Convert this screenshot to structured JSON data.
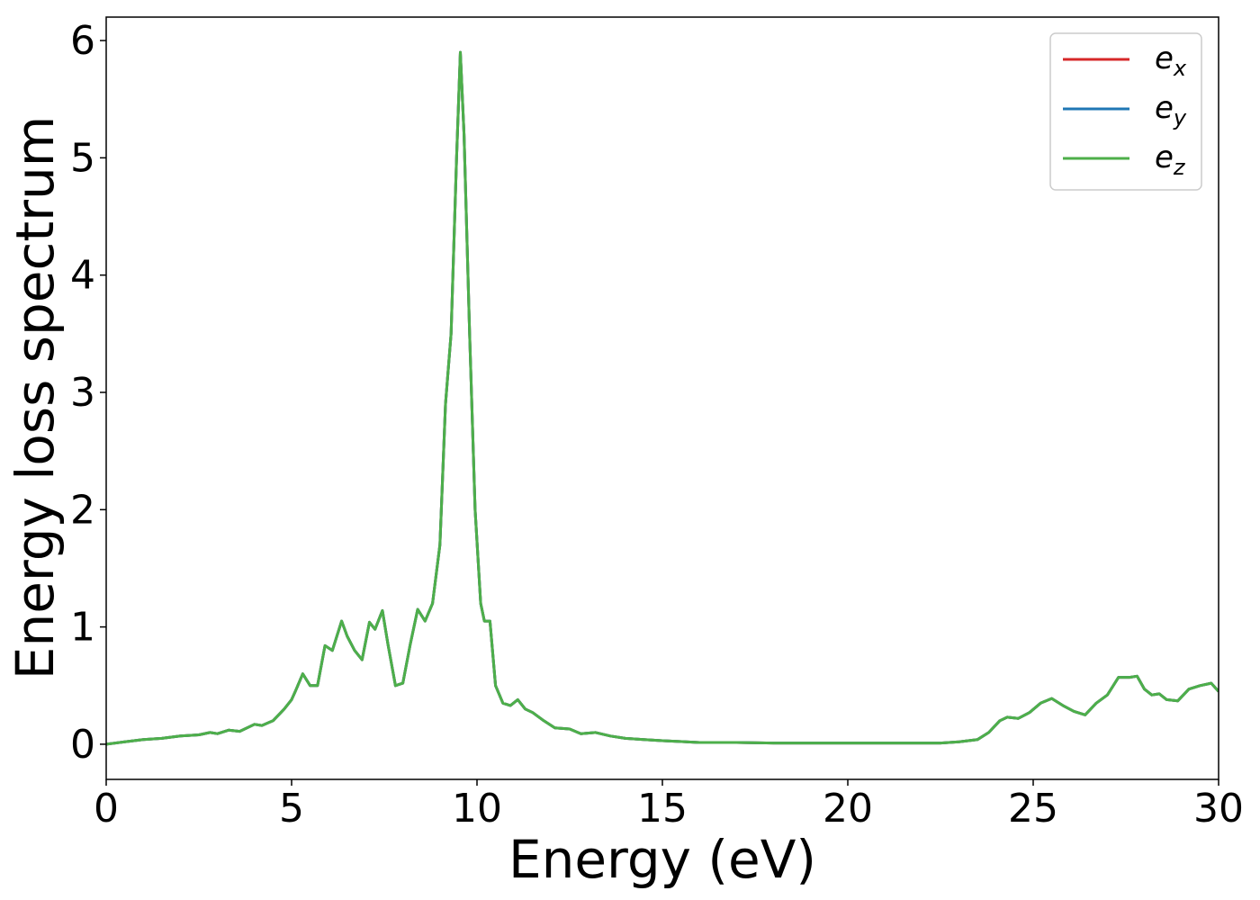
{
  "chart_data": {
    "type": "line",
    "xlabel": "Energy (eV)",
    "ylabel": "Energy loss spectrum",
    "xlim": [
      0,
      30
    ],
    "ylim": [
      -0.3,
      6.2
    ],
    "xticks": [
      0,
      5,
      10,
      15,
      20,
      25,
      30
    ],
    "xtick_labels": [
      "0",
      "5",
      "10",
      "15",
      "20",
      "25",
      "30"
    ],
    "yticks": [
      0,
      1,
      2,
      3,
      4,
      5,
      6
    ],
    "ytick_labels": [
      "0",
      "1",
      "2",
      "3",
      "4",
      "5",
      "6"
    ],
    "grid": false,
    "legend_position": "top-right",
    "legend": [
      {
        "base": "e",
        "sub": "x",
        "color": "#d62728"
      },
      {
        "base": "e",
        "sub": "y",
        "color": "#1f77b4"
      },
      {
        "base": "e",
        "sub": "z",
        "color": "#4daf4a"
      }
    ],
    "x": [
      0,
      0.5,
      1,
      1.5,
      2,
      2.5,
      2.8,
      3,
      3.3,
      3.6,
      4,
      4.2,
      4.5,
      4.8,
      5,
      5.1,
      5.3,
      5.5,
      5.7,
      5.9,
      6.1,
      6.35,
      6.5,
      6.7,
      6.9,
      7.1,
      7.25,
      7.45,
      7.6,
      7.8,
      8.0,
      8.2,
      8.4,
      8.6,
      8.8,
      9.0,
      9.15,
      9.3,
      9.45,
      9.55,
      9.65,
      9.8,
      9.95,
      10.1,
      10.2,
      10.35,
      10.5,
      10.7,
      10.9,
      11.1,
      11.3,
      11.5,
      11.8,
      12.1,
      12.5,
      12.8,
      13.2,
      13.6,
      14,
      14.5,
      15,
      16,
      17,
      18,
      19,
      20,
      21,
      22,
      22.5,
      23,
      23.5,
      23.8,
      24.1,
      24.3,
      24.6,
      24.9,
      25.2,
      25.5,
      25.8,
      26.1,
      26.4,
      26.7,
      27,
      27.3,
      27.6,
      27.8,
      28,
      28.2,
      28.4,
      28.6,
      28.9,
      29.2,
      29.5,
      29.8,
      30
    ],
    "series": [
      {
        "name": "e_x",
        "color": "#d62728",
        "values": [
          0.0,
          0.02,
          0.04,
          0.05,
          0.07,
          0.08,
          0.1,
          0.09,
          0.12,
          0.11,
          0.17,
          0.16,
          0.2,
          0.3,
          0.38,
          0.45,
          0.6,
          0.5,
          0.5,
          0.84,
          0.8,
          1.05,
          0.92,
          0.8,
          0.72,
          1.04,
          0.98,
          1.14,
          0.85,
          0.5,
          0.52,
          0.85,
          1.15,
          1.05,
          1.2,
          1.7,
          2.9,
          3.5,
          5.0,
          5.9,
          5.2,
          3.5,
          2.0,
          1.2,
          1.05,
          1.05,
          0.5,
          0.35,
          0.33,
          0.38,
          0.3,
          0.27,
          0.2,
          0.14,
          0.13,
          0.09,
          0.1,
          0.07,
          0.05,
          0.04,
          0.03,
          0.015,
          0.015,
          0.01,
          0.01,
          0.01,
          0.01,
          0.01,
          0.01,
          0.02,
          0.04,
          0.1,
          0.2,
          0.23,
          0.22,
          0.27,
          0.35,
          0.39,
          0.33,
          0.28,
          0.25,
          0.35,
          0.42,
          0.57,
          0.57,
          0.58,
          0.47,
          0.42,
          0.43,
          0.38,
          0.37,
          0.47,
          0.5,
          0.52,
          0.45
        ]
      },
      {
        "name": "e_y",
        "color": "#1f77b4",
        "values": [
          0.0,
          0.02,
          0.04,
          0.05,
          0.07,
          0.08,
          0.1,
          0.09,
          0.12,
          0.11,
          0.17,
          0.16,
          0.2,
          0.3,
          0.38,
          0.45,
          0.6,
          0.5,
          0.5,
          0.84,
          0.8,
          1.05,
          0.92,
          0.8,
          0.72,
          1.04,
          0.98,
          1.14,
          0.85,
          0.5,
          0.52,
          0.85,
          1.15,
          1.05,
          1.2,
          1.7,
          2.9,
          3.5,
          5.0,
          5.9,
          5.2,
          3.5,
          2.0,
          1.2,
          1.05,
          1.05,
          0.5,
          0.35,
          0.33,
          0.38,
          0.3,
          0.27,
          0.2,
          0.14,
          0.13,
          0.09,
          0.1,
          0.07,
          0.05,
          0.04,
          0.03,
          0.015,
          0.015,
          0.01,
          0.01,
          0.01,
          0.01,
          0.01,
          0.01,
          0.02,
          0.04,
          0.1,
          0.2,
          0.23,
          0.22,
          0.27,
          0.35,
          0.39,
          0.33,
          0.28,
          0.25,
          0.35,
          0.42,
          0.57,
          0.57,
          0.58,
          0.47,
          0.42,
          0.43,
          0.38,
          0.37,
          0.47,
          0.5,
          0.52,
          0.45
        ]
      },
      {
        "name": "e_z",
        "color": "#4daf4a",
        "values": [
          0.0,
          0.02,
          0.04,
          0.05,
          0.07,
          0.08,
          0.1,
          0.09,
          0.12,
          0.11,
          0.17,
          0.16,
          0.2,
          0.3,
          0.38,
          0.45,
          0.6,
          0.5,
          0.5,
          0.84,
          0.8,
          1.05,
          0.92,
          0.8,
          0.72,
          1.04,
          0.98,
          1.14,
          0.85,
          0.5,
          0.52,
          0.85,
          1.15,
          1.05,
          1.2,
          1.7,
          2.9,
          3.5,
          5.0,
          5.9,
          5.2,
          3.5,
          2.0,
          1.2,
          1.05,
          1.05,
          0.5,
          0.35,
          0.33,
          0.38,
          0.3,
          0.27,
          0.2,
          0.14,
          0.13,
          0.09,
          0.1,
          0.07,
          0.05,
          0.04,
          0.03,
          0.015,
          0.015,
          0.01,
          0.01,
          0.01,
          0.01,
          0.01,
          0.01,
          0.02,
          0.04,
          0.1,
          0.2,
          0.23,
          0.22,
          0.27,
          0.35,
          0.39,
          0.33,
          0.28,
          0.25,
          0.35,
          0.42,
          0.57,
          0.57,
          0.58,
          0.47,
          0.42,
          0.43,
          0.38,
          0.37,
          0.47,
          0.5,
          0.52,
          0.45
        ]
      }
    ]
  }
}
